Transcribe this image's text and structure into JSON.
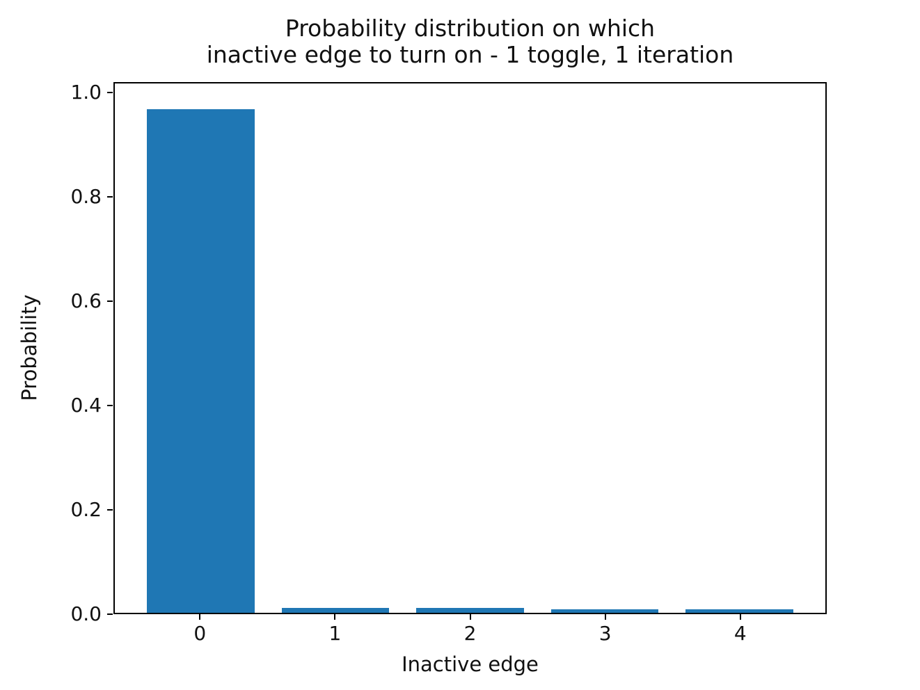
{
  "figure": {
    "background_color": "#ffffff",
    "spine_color": "#000000",
    "text_color": "#111111"
  },
  "chart_data": {
    "type": "bar",
    "title_lines": [
      "Probability distribution on which",
      "inactive edge to turn on - 1 toggle, 1 iteration"
    ],
    "xlabel": "Inactive edge",
    "ylabel": "Probability",
    "categories": [
      "0",
      "1",
      "2",
      "3",
      "4"
    ],
    "values": [
      0.97,
      0.01,
      0.01,
      0.007,
      0.007
    ],
    "yticks": [
      0.0,
      0.2,
      0.4,
      0.6,
      0.8,
      1.0
    ],
    "ytick_labels": [
      "0.0",
      "0.2",
      "0.4",
      "0.6",
      "0.8",
      "1.0"
    ],
    "ylim": [
      0,
      1.02
    ],
    "xlim": [
      -0.64,
      4.64
    ],
    "bar_width": 0.8,
    "bar_color": "#1f77b4",
    "grid": false,
    "legend": null
  }
}
